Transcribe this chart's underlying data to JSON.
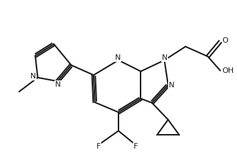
{
  "bg_color": "#ffffff",
  "line_color": "#1a1a1a",
  "line_width": 1.5,
  "font_size": 8.0,
  "figsize": [
    3.44,
    2.4
  ],
  "dpi": 100,
  "xlim": [
    0.8,
    10.2
  ],
  "ylim": [
    1.0,
    6.8
  ]
}
